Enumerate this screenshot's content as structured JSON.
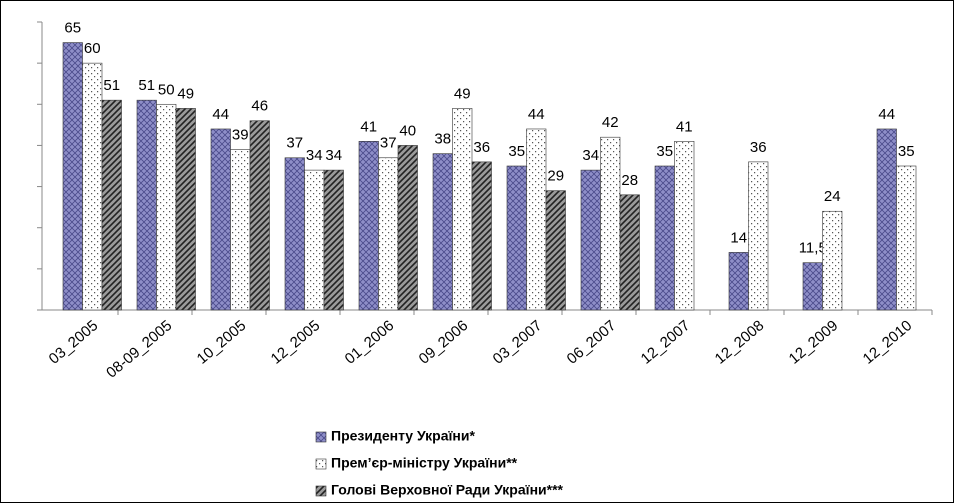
{
  "chart_data": {
    "type": "bar",
    "categories": [
      "03_2005",
      "08-09_2005",
      "10_2005",
      "12_2005",
      "01_2006",
      "09_2006",
      "03_2007",
      "06_2007",
      "12_2007",
      "12_2008",
      "12_2009",
      "12_2010"
    ],
    "series": [
      {
        "name": "Президенту України*",
        "color": "#8e8ec8",
        "values": [
          65,
          51,
          44,
          37,
          41,
          38,
          35,
          34,
          35,
          14,
          11.5,
          44
        ],
        "value_labels": [
          "65",
          "51",
          "44",
          "37",
          "41",
          "38",
          "35",
          "34",
          "35",
          "14",
          "11,5",
          "44"
        ]
      },
      {
        "name": "Прем’єр-міністру України**",
        "color": "#ffffff",
        "values": [
          60,
          50,
          39,
          34,
          37,
          49,
          44,
          42,
          41,
          36,
          24,
          35
        ]
      },
      {
        "name": "Голові Верховної Ради України***",
        "color": "#9a9a9a",
        "values": [
          51,
          49,
          46,
          34,
          40,
          36,
          29,
          28,
          null,
          null,
          null,
          null
        ]
      }
    ],
    "ylim": [
      0,
      70
    ],
    "yticks": [
      0,
      10,
      20,
      30,
      40,
      50,
      60,
      70
    ]
  }
}
